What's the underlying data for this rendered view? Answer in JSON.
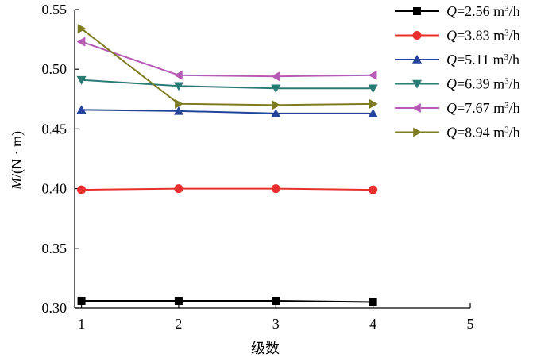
{
  "chart_data": {
    "type": "line",
    "xlabel": "级数",
    "ylabel_var": "M",
    "ylabel_unit": "/(N · m)",
    "x": [
      1,
      2,
      3,
      4
    ],
    "xlim": [
      0.93,
      5
    ],
    "ylim": [
      0.3,
      0.55
    ],
    "xticks": [
      "1",
      "2",
      "3",
      "4",
      "5"
    ],
    "yticks": [
      "0.30",
      "0.35",
      "0.40",
      "0.45",
      "0.50",
      "0.55"
    ],
    "legend_position": "right",
    "grid": false,
    "series": [
      {
        "name_var": "Q",
        "name_value": "=2.56 m",
        "name_sup": "3",
        "name_unit": "/h",
        "color": "#000000",
        "marker": "square",
        "values": [
          0.306,
          0.306,
          0.306,
          0.305
        ]
      },
      {
        "name_var": "Q",
        "name_value": "=3.83 m",
        "name_sup": "3",
        "name_unit": "/h",
        "color": "#e8312f",
        "marker": "circle",
        "values": [
          0.399,
          0.4,
          0.4,
          0.399
        ]
      },
      {
        "name_var": "Q",
        "name_value": "=5.11 m",
        "name_sup": "3",
        "name_unit": "/h",
        "color": "#24449b",
        "marker": "triangle-up",
        "values": [
          0.466,
          0.465,
          0.463,
          0.463
        ]
      },
      {
        "name_var": "Q",
        "name_value": "=6.39 m",
        "name_sup": "3",
        "name_unit": "/h",
        "color": "#2a7a75",
        "marker": "triangle-down",
        "values": [
          0.491,
          0.486,
          0.484,
          0.484
        ]
      },
      {
        "name_var": "Q",
        "name_value": "=7.67 m",
        "name_sup": "3",
        "name_unit": "/h",
        "color": "#b55bb5",
        "marker": "triangle-left",
        "values": [
          0.523,
          0.495,
          0.494,
          0.495
        ]
      },
      {
        "name_var": "Q",
        "name_value": "=8.94 m",
        "name_sup": "3",
        "name_unit": "/h",
        "color": "#7e7a20",
        "marker": "triangle-right",
        "values": [
          0.534,
          0.471,
          0.47,
          0.471
        ]
      }
    ]
  }
}
